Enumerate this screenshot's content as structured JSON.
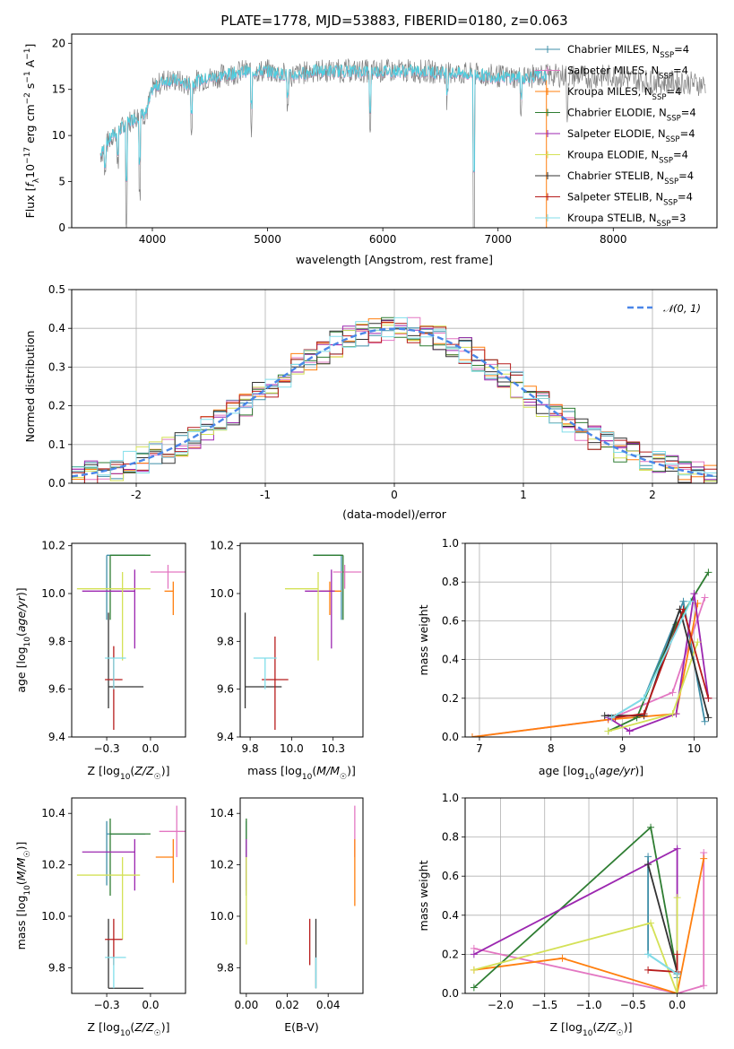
{
  "chart_data": [
    {
      "id": "spectrum",
      "type": "line",
      "title": "PLATE=1778, MJD=53883, FIBERID=0180, z=0.063",
      "xlabel": "wavelength [Angstrom, rest frame]",
      "ylabel": "Flux [f_λ10^-17 erg cm^-2 s^-1 A^-1]",
      "xlim": [
        3300,
        8900
      ],
      "ylim": [
        0,
        21
      ],
      "xticks": [
        4000,
        5000,
        6000,
        7000,
        8000
      ],
      "yticks": [
        0,
        5,
        10,
        15,
        20
      ],
      "grid": false,
      "legend_position": "top-right",
      "series": [
        {
          "name": "Chabrier MILES, N_SSP=4",
          "label_main": "Chabrier MILES, N",
          "label_sub": "SSP",
          "label_tail": "=4",
          "color": "#3f8fa8"
        },
        {
          "name": "Salpeter MILES, N_SSP=4",
          "label_main": "Salpeter MILES, N",
          "label_sub": "SSP",
          "label_tail": "=4",
          "color": "#e377c2"
        },
        {
          "name": "Kroupa MILES, N_SSP=4",
          "label_main": "Kroupa MILES, N",
          "label_sub": "SSP",
          "label_tail": "=4",
          "color": "#ff7f0e"
        },
        {
          "name": "Chabrier ELODIE, N_SSP=4",
          "label_main": "Chabrier ELODIE, N",
          "label_sub": "SSP",
          "label_tail": "=4",
          "color": "#2e7d32"
        },
        {
          "name": "Salpeter ELODIE, N_SSP=4",
          "label_main": "Salpeter ELODIE, N",
          "label_sub": "SSP",
          "label_tail": "=4",
          "color": "#9c27b0"
        },
        {
          "name": "Kroupa ELODIE, N_SSP=4",
          "label_main": "Kroupa ELODIE, N",
          "label_sub": "SSP",
          "label_tail": "=4",
          "color": "#d4e157"
        },
        {
          "name": "Chabrier STELIB, N_SSP=4",
          "label_main": "Chabrier STELIB, N",
          "label_sub": "SSP",
          "label_tail": "=4",
          "color": "#333333"
        },
        {
          "name": "Salpeter STELIB, N_SSP=4",
          "label_main": "Salpeter STELIB, N",
          "label_sub": "SSP",
          "label_tail": "=4",
          "color": "#b71c1c"
        },
        {
          "name": "Kroupa STELIB, N_SSP=3",
          "label_main": "Kroupa STELIB, N",
          "label_sub": "SSP",
          "label_tail": "=3",
          "color": "#80deea"
        }
      ],
      "data_color": "#808080",
      "model_color": "#4dd0e1",
      "spectrum_shape": {
        "x": [
          3550,
          3650,
          3750,
          3850,
          3950,
          4000,
          4100,
          4200,
          4300,
          4400,
          4600,
          4800,
          5000,
          5200,
          5400,
          5600,
          5800,
          6000,
          6300,
          6600,
          6900,
          7200,
          7400,
          7600,
          7800,
          8000,
          8200,
          8400,
          8600,
          8800
        ],
        "y": [
          8,
          10,
          11,
          12,
          12.5,
          15,
          16,
          16,
          15.5,
          16,
          16.5,
          17,
          17,
          16.5,
          17,
          17,
          17,
          17,
          17,
          16.8,
          16.5,
          16.3,
          16.5,
          16.5,
          16.3,
          16.5,
          16,
          15.8,
          15.8,
          15.5
        ]
      },
      "model_extent": [
        3550,
        7420
      ]
    },
    {
      "id": "residuals",
      "type": "histogram",
      "xlabel": "(data-model)/error",
      "ylabel": "Normed distribution",
      "xlim": [
        -2.5,
        2.5
      ],
      "ylim": [
        0,
        0.5
      ],
      "xticks": [
        -2,
        -1,
        0,
        1,
        2
      ],
      "yticks": [
        0.0,
        0.1,
        0.2,
        0.3,
        0.4,
        0.5
      ],
      "grid": true,
      "legend_position": "top-right",
      "gaussian_label": "𝒩(0, 1)",
      "gaussian_color": "#4a86e8",
      "bin_width": 0.1,
      "bin_start": -2.5
    },
    {
      "id": "age-vs-Z",
      "type": "errorbar",
      "xlabel": "Z [log10(Z/Z☉)]",
      "ylabel": "age [log10(age/yr)]",
      "xlim": [
        -0.45,
        0.2
      ],
      "ylim": [
        9.4,
        10.21
      ],
      "xticks": [
        -0.25,
        0.0
      ],
      "yticks": [
        9.4,
        9.6,
        9.8,
        10.0,
        10.2
      ],
      "points": [
        {
          "series": 0,
          "x": -0.25,
          "y": 10.16,
          "xerr": [
            0.0,
            0.22
          ],
          "yerr": [
            0.27,
            0.0
          ]
        },
        {
          "series": 1,
          "x": 0.1,
          "y": 10.09,
          "xerr": [
            0.1,
            0.1
          ],
          "yerr": [
            0.07,
            0.03
          ]
        },
        {
          "series": 2,
          "x": 0.13,
          "y": 10.01,
          "xerr": [
            0.05,
            0.0
          ],
          "yerr": [
            0.1,
            0.04
          ]
        },
        {
          "series": 3,
          "x": -0.23,
          "y": 10.16,
          "xerr": [
            0.0,
            0.23
          ],
          "yerr": [
            0.27,
            0.0
          ]
        },
        {
          "series": 4,
          "x": -0.09,
          "y": 10.01,
          "xerr": [
            0.3,
            0.0
          ],
          "yerr": [
            0.24,
            0.09
          ]
        },
        {
          "series": 5,
          "x": -0.16,
          "y": 10.02,
          "xerr": [
            0.26,
            0.16
          ],
          "yerr": [
            0.3,
            0.07
          ]
        },
        {
          "series": 6,
          "x": -0.24,
          "y": 9.61,
          "xerr": [
            0.0,
            0.2
          ],
          "yerr": [
            0.09,
            0.31
          ]
        },
        {
          "series": 7,
          "x": -0.21,
          "y": 9.64,
          "xerr": [
            0.05,
            0.05
          ],
          "yerr": [
            0.21,
            0.14
          ]
        },
        {
          "series": 8,
          "x": -0.21,
          "y": 9.73,
          "xerr": [
            0.05,
            0.07
          ],
          "yerr": [
            0.13,
            0.0
          ]
        }
      ]
    },
    {
      "id": "age-vs-mass",
      "type": "errorbar",
      "xlabel": "mass [log10(M/M☉)]",
      "ylabel": "",
      "xlim": [
        9.69,
        10.43
      ],
      "ylim": [
        9.4,
        10.21
      ],
      "xticks": [
        9.75,
        10.0,
        10.25
      ],
      "yticks": [
        9.4,
        9.6,
        9.8,
        10.0,
        10.2
      ],
      "points": [
        {
          "series": 0,
          "x": 10.3,
          "y": 10.16,
          "xerr": [
            0.17,
            0.0
          ],
          "yerr": [
            0.27,
            0.0
          ]
        },
        {
          "series": 1,
          "x": 10.32,
          "y": 10.09,
          "xerr": [
            0.07,
            0.1
          ],
          "yerr": [
            0.07,
            0.03
          ]
        },
        {
          "series": 2,
          "x": 10.23,
          "y": 10.01,
          "xerr": [
            0.06,
            0.07
          ],
          "yerr": [
            0.1,
            0.04
          ]
        },
        {
          "series": 3,
          "x": 10.31,
          "y": 10.16,
          "xerr": [
            0.18,
            0.0
          ],
          "yerr": [
            0.27,
            0.0
          ]
        },
        {
          "series": 4,
          "x": 10.24,
          "y": 10.01,
          "xerr": [
            0.16,
            0.02
          ],
          "yerr": [
            0.24,
            0.09
          ]
        },
        {
          "series": 5,
          "x": 10.16,
          "y": 10.02,
          "xerr": [
            0.2,
            0.0
          ],
          "yerr": [
            0.3,
            0.07
          ]
        },
        {
          "series": 6,
          "x": 9.72,
          "y": 9.61,
          "xerr": [
            0.0,
            0.22
          ],
          "yerr": [
            0.09,
            0.31
          ]
        },
        {
          "series": 7,
          "x": 9.9,
          "y": 9.64,
          "xerr": [
            0.08,
            0.08
          ],
          "yerr": [
            0.21,
            0.18
          ]
        },
        {
          "series": 8,
          "x": 9.84,
          "y": 9.73,
          "xerr": [
            0.07,
            0.07
          ],
          "yerr": [
            0.13,
            0.0
          ]
        }
      ]
    },
    {
      "id": "mass-weight-vs-age",
      "type": "line",
      "xlabel": "age [log10(age/yr)]",
      "ylabel": "mass weight",
      "xlim": [
        6.8,
        10.32
      ],
      "ylim": [
        0,
        1.0
      ],
      "xticks": [
        7,
        8,
        9,
        10
      ],
      "yticks": [
        0.0,
        0.2,
        0.4,
        0.6,
        0.8,
        1.0
      ],
      "grid": true,
      "series": [
        {
          "series": 0,
          "x": [
            8.85,
            9.3,
            9.85,
            10.15
          ],
          "y": [
            0.1,
            0.2,
            0.7,
            0.08
          ]
        },
        {
          "series": 1,
          "x": [
            6.9,
            8.8,
            9.7,
            10.15
          ],
          "y": [
            0.0,
            0.09,
            0.23,
            0.72
          ]
        },
        {
          "series": 2,
          "x": [
            6.9,
            8.8,
            9.75,
            10.05
          ],
          "y": [
            0.0,
            0.09,
            0.12,
            0.69
          ]
        },
        {
          "series": 3,
          "x": [
            8.8,
            9.2,
            9.75,
            10.2
          ],
          "y": [
            0.03,
            0.1,
            0.58,
            0.85
          ]
        },
        {
          "series": 4,
          "x": [
            8.8,
            9.1,
            9.75,
            10.0,
            10.2
          ],
          "y": [
            0.1,
            0.03,
            0.12,
            0.74,
            0.2
          ]
        },
        {
          "series": 5,
          "x": [
            8.8,
            9.7,
            10.05
          ],
          "y": [
            0.03,
            0.12,
            0.49
          ]
        },
        {
          "series": 6,
          "x": [
            8.75,
            9.3,
            9.8,
            10.2
          ],
          "y": [
            0.11,
            0.11,
            0.66,
            0.1
          ]
        },
        {
          "series": 7,
          "x": [
            8.9,
            9.3,
            9.85,
            10.2
          ],
          "y": [
            0.1,
            0.12,
            0.66,
            0.2
          ]
        },
        {
          "series": 8,
          "x": [
            8.85,
            9.3,
            9.95
          ],
          "y": [
            0.1,
            0.2,
            0.7
          ]
        }
      ]
    },
    {
      "id": "mass-vs-Z",
      "type": "errorbar",
      "xlabel": "Z [log10(Z/Z☉)]",
      "ylabel": "mass [log10(M/M☉)]",
      "xlim": [
        -0.45,
        0.2
      ],
      "ylim": [
        9.7,
        10.46
      ],
      "xticks": [
        -0.25,
        0.0
      ],
      "yticks": [
        9.8,
        10.0,
        10.2,
        10.4
      ],
      "points": [
        {
          "series": 0,
          "x": -0.25,
          "y": 10.32,
          "xerr": [
            0.0,
            0.22
          ],
          "yerr": [
            0.2,
            0.05
          ]
        },
        {
          "series": 1,
          "x": 0.15,
          "y": 10.33,
          "xerr": [
            0.1,
            0.05
          ],
          "yerr": [
            0.1,
            0.1
          ]
        },
        {
          "series": 2,
          "x": 0.13,
          "y": 10.23,
          "xerr": [
            0.1,
            0.0
          ],
          "yerr": [
            0.1,
            0.07
          ]
        },
        {
          "series": 3,
          "x": -0.23,
          "y": 10.32,
          "xerr": [
            0.0,
            0.23
          ],
          "yerr": [
            0.24,
            0.06
          ]
        },
        {
          "series": 4,
          "x": -0.09,
          "y": 10.25,
          "xerr": [
            0.3,
            0.0
          ],
          "yerr": [
            0.15,
            0.05
          ]
        },
        {
          "series": 5,
          "x": -0.16,
          "y": 10.16,
          "xerr": [
            0.26,
            0.1
          ],
          "yerr": [
            0.25,
            0.07
          ]
        },
        {
          "series": 6,
          "x": -0.24,
          "y": 9.72,
          "xerr": [
            0.0,
            0.2
          ],
          "yerr": [
            0.0,
            0.27
          ]
        },
        {
          "series": 7,
          "x": -0.21,
          "y": 9.91,
          "xerr": [
            0.05,
            0.05
          ],
          "yerr": [
            0.1,
            0.08
          ]
        },
        {
          "series": 8,
          "x": -0.21,
          "y": 9.84,
          "xerr": [
            0.05,
            0.07
          ],
          "yerr": [
            0.12,
            0.0
          ]
        }
      ]
    },
    {
      "id": "mass-vs-ebv",
      "type": "errorbar",
      "xlabel": "E(B-V)",
      "ylabel": "",
      "xlim": [
        -0.003,
        0.057
      ],
      "ylim": [
        9.7,
        10.46
      ],
      "xticks": [
        0.0,
        0.02,
        0.04
      ],
      "yticks": [
        9.8,
        10.0,
        10.2,
        10.4
      ],
      "points": [
        {
          "series": 0,
          "x": 0.0,
          "y": 10.32,
          "xerr": [
            0,
            0
          ],
          "yerr": [
            0.2,
            0.05
          ]
        },
        {
          "series": 1,
          "x": 0.053,
          "y": 10.33,
          "xerr": [
            0,
            0
          ],
          "yerr": [
            0.1,
            0.1
          ]
        },
        {
          "series": 2,
          "x": 0.053,
          "y": 10.23,
          "xerr": [
            0,
            0
          ],
          "yerr": [
            0.19,
            0.07
          ]
        },
        {
          "series": 3,
          "x": 0.0,
          "y": 10.32,
          "xerr": [
            0,
            0
          ],
          "yerr": [
            0.24,
            0.06
          ]
        },
        {
          "series": 4,
          "x": 0.0,
          "y": 10.25,
          "xerr": [
            0,
            0
          ],
          "yerr": [
            0.15,
            0.05
          ]
        },
        {
          "series": 5,
          "x": 0.0,
          "y": 10.16,
          "xerr": [
            0,
            0
          ],
          "yerr": [
            0.27,
            0.07
          ]
        },
        {
          "series": 6,
          "x": 0.034,
          "y": 9.91,
          "xerr": [
            0,
            0
          ],
          "yerr": [
            0.19,
            0.08
          ]
        },
        {
          "series": 7,
          "x": 0.031,
          "y": 9.91,
          "xerr": [
            0,
            0
          ],
          "yerr": [
            0.1,
            0.08
          ]
        },
        {
          "series": 8,
          "x": 0.034,
          "y": 9.84,
          "xerr": [
            0,
            0
          ],
          "yerr": [
            0.12,
            0.0
          ]
        }
      ]
    },
    {
      "id": "mass-weight-vs-Z",
      "type": "line",
      "xlabel": "Z [log10(Z/Z☉)]",
      "ylabel": "mass weight",
      "xlim": [
        -2.4,
        0.45
      ],
      "ylim": [
        0,
        1.0
      ],
      "xticks": [
        -2.0,
        -1.5,
        -1.0,
        -0.5,
        0.0
      ],
      "yticks": [
        0.0,
        0.2,
        0.4,
        0.6,
        0.8,
        1.0
      ],
      "grid": true,
      "series": [
        {
          "series": 0,
          "x": [
            -0.33,
            -0.33,
            0.0,
            0.0
          ],
          "y": [
            0.7,
            0.2,
            0.1,
            0.08
          ]
        },
        {
          "series": 1,
          "x": [
            -2.3,
            0.0,
            0.3,
            0.3
          ],
          "y": [
            0.23,
            0.0,
            0.04,
            0.72
          ]
        },
        {
          "series": 2,
          "x": [
            -2.3,
            -1.3,
            0.0,
            0.3
          ],
          "y": [
            0.12,
            0.18,
            0.0,
            0.69
          ]
        },
        {
          "series": 3,
          "x": [
            -2.3,
            -0.3,
            0.0,
            0.0
          ],
          "y": [
            0.03,
            0.85,
            0.1,
            0.1
          ]
        },
        {
          "series": 4,
          "x": [
            -2.3,
            0.0,
            0.0
          ],
          "y": [
            0.2,
            0.74,
            0.1
          ]
        },
        {
          "series": 5,
          "x": [
            -2.3,
            -0.3,
            0.0,
            0.0
          ],
          "y": [
            0.12,
            0.36,
            0.0,
            0.49
          ]
        },
        {
          "series": 6,
          "x": [
            -0.33,
            0.0,
            0.0
          ],
          "y": [
            0.66,
            0.11,
            0.1
          ]
        },
        {
          "series": 7,
          "x": [
            -0.33,
            0.0,
            0.0
          ],
          "y": [
            0.12,
            0.11,
            0.2
          ]
        },
        {
          "series": 8,
          "x": [
            -0.33,
            0.0
          ],
          "y": [
            0.2,
            0.1
          ]
        }
      ]
    }
  ]
}
